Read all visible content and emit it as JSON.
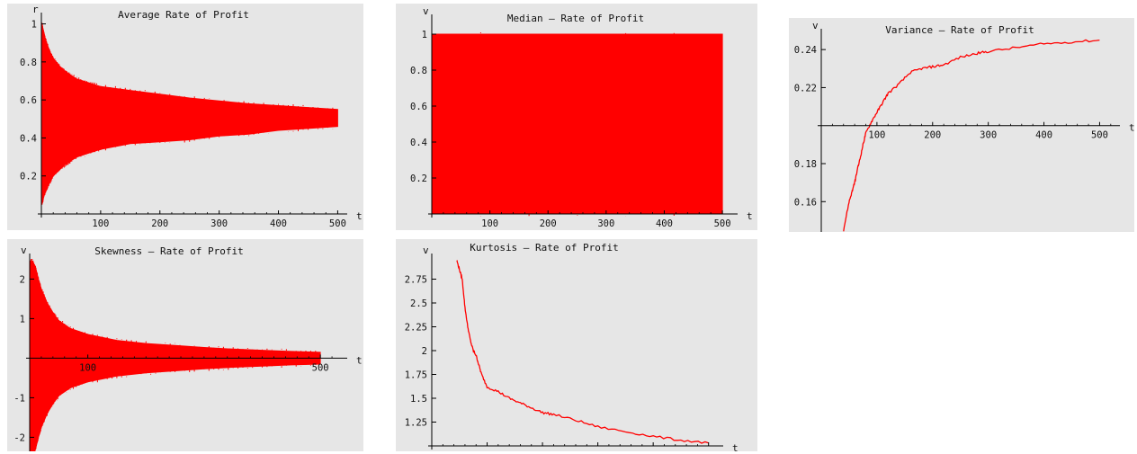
{
  "charts": [
    {
      "id": "avg",
      "type": "area",
      "title": "Average   Rate   of  Profit",
      "xlabel": "t",
      "ylabel": "r",
      "xlim": [
        0,
        510
      ],
      "ylim": [
        0,
        1.05
      ],
      "x_axis_at": 0,
      "y_axis_at": 0,
      "x_ticks": [
        100,
        200,
        300,
        400,
        500
      ],
      "y_ticks": [
        0.2,
        0.4,
        0.6,
        0.8,
        1
      ],
      "series": [
        {
          "kind": "band",
          "color": "#ff0000",
          "x": [
            1,
            3,
            6,
            10,
            15,
            20,
            30,
            40,
            50,
            60,
            80,
            100,
            150,
            200,
            250,
            300,
            350,
            400,
            450,
            500
          ],
          "upper": [
            1.0,
            0.97,
            0.93,
            0.89,
            0.85,
            0.82,
            0.78,
            0.75,
            0.73,
            0.71,
            0.69,
            0.67,
            0.65,
            0.63,
            0.61,
            0.595,
            0.58,
            0.57,
            0.56,
            0.55
          ],
          "lower": [
            0.05,
            0.08,
            0.11,
            0.14,
            0.17,
            0.2,
            0.23,
            0.26,
            0.28,
            0.3,
            0.32,
            0.34,
            0.37,
            0.38,
            0.39,
            0.41,
            0.42,
            0.44,
            0.45,
            0.46
          ]
        }
      ]
    },
    {
      "id": "median",
      "type": "area",
      "title": "Median   –  Rate  of  Profit",
      "xlabel": "t",
      "ylabel": "v",
      "xlim": [
        0,
        520
      ],
      "ylim": [
        0,
        1.1
      ],
      "x_axis_at": 0,
      "y_axis_at": 0,
      "x_ticks": [
        100,
        200,
        300,
        400,
        500
      ],
      "y_ticks": [
        0.2,
        0.4,
        0.6,
        0.8,
        1
      ],
      "series": [
        {
          "kind": "band",
          "color": "#ff0000",
          "x": [
            1,
            500
          ],
          "upper": [
            1,
            1
          ],
          "lower": [
            0,
            0
          ]
        }
      ]
    },
    {
      "id": "variance",
      "type": "line",
      "title": "Variance   –  Rate  of  Profit",
      "xlabel": "t",
      "ylabel": "v",
      "xlim": [
        0,
        530
      ],
      "ylim": [
        0.145,
        0.25
      ],
      "x_axis_at": 0.2,
      "y_axis_at": 0,
      "x_ticks": [
        100,
        200,
        300,
        400,
        500
      ],
      "y_ticks": [
        0.16,
        0.18,
        0.22,
        0.24
      ],
      "series": [
        {
          "kind": "line",
          "color": "#ff0000",
          "x": [
            40,
            50,
            55,
            60,
            65,
            70,
            75,
            80,
            90,
            100,
            110,
            120,
            140,
            160,
            180,
            200,
            220,
            250,
            280,
            300,
            350,
            400,
            450,
            500
          ],
          "y": [
            0.145,
            0.16,
            0.165,
            0.17,
            0.177,
            0.183,
            0.19,
            0.196,
            0.202,
            0.207,
            0.212,
            0.217,
            0.222,
            0.228,
            0.23,
            0.231,
            0.232,
            0.236,
            0.238,
            0.239,
            0.241,
            0.243,
            0.244,
            0.245
          ]
        }
      ]
    },
    {
      "id": "skewness",
      "type": "area",
      "title": "Skewness   –  Rate  of  Profit",
      "xlabel": "t",
      "ylabel": "v",
      "xlim": [
        0,
        540
      ],
      "ylim": [
        -2.4,
        2.6
      ],
      "x_axis_at": 0,
      "y_axis_at": 0,
      "x_ticks": [
        100,
        500
      ],
      "y_ticks": [
        -2,
        -1,
        1,
        2
      ],
      "series": [
        {
          "kind": "band",
          "color": "#ff0000",
          "x": [
            1,
            5,
            10,
            15,
            20,
            30,
            40,
            50,
            70,
            100,
            150,
            200,
            250,
            300,
            350,
            400,
            450,
            500
          ],
          "upper": [
            2.45,
            2.45,
            2.3,
            2.0,
            1.75,
            1.4,
            1.15,
            0.95,
            0.75,
            0.6,
            0.45,
            0.37,
            0.32,
            0.27,
            0.23,
            0.2,
            0.17,
            0.15
          ],
          "lower": [
            -2.5,
            -2.5,
            -2.3,
            -2.0,
            -1.75,
            -1.4,
            -1.15,
            -0.95,
            -0.75,
            -0.6,
            -0.45,
            -0.37,
            -0.32,
            -0.27,
            -0.23,
            -0.2,
            -0.17,
            -0.15
          ]
        }
      ]
    },
    {
      "id": "kurtosis",
      "type": "line",
      "title": "Kurtosis  –  Rate  of  Profit",
      "xlabel": "t",
      "ylabel": "v",
      "xlim": [
        0,
        520
      ],
      "ylim": [
        1.0,
        3.0
      ],
      "x_axis_at": 1.0,
      "y_axis_at": 0,
      "x_ticks": [
        100,
        200,
        300,
        400,
        500
      ],
      "y_ticks": [
        1.25,
        1.5,
        1.75,
        2,
        2.25,
        2.5,
        2.75
      ],
      "series": [
        {
          "kind": "line",
          "color": "#ff0000",
          "x": [
            45,
            50,
            55,
            60,
            65,
            70,
            75,
            80,
            85,
            90,
            100,
            120,
            140,
            160,
            180,
            200,
            220,
            260,
            300,
            350,
            400,
            450,
            500
          ],
          "y": [
            2.95,
            2.85,
            2.75,
            2.45,
            2.25,
            2.1,
            2.0,
            1.95,
            1.85,
            1.75,
            1.62,
            1.57,
            1.5,
            1.45,
            1.4,
            1.35,
            1.33,
            1.27,
            1.2,
            1.15,
            1.1,
            1.06,
            1.03
          ]
        }
      ]
    }
  ]
}
